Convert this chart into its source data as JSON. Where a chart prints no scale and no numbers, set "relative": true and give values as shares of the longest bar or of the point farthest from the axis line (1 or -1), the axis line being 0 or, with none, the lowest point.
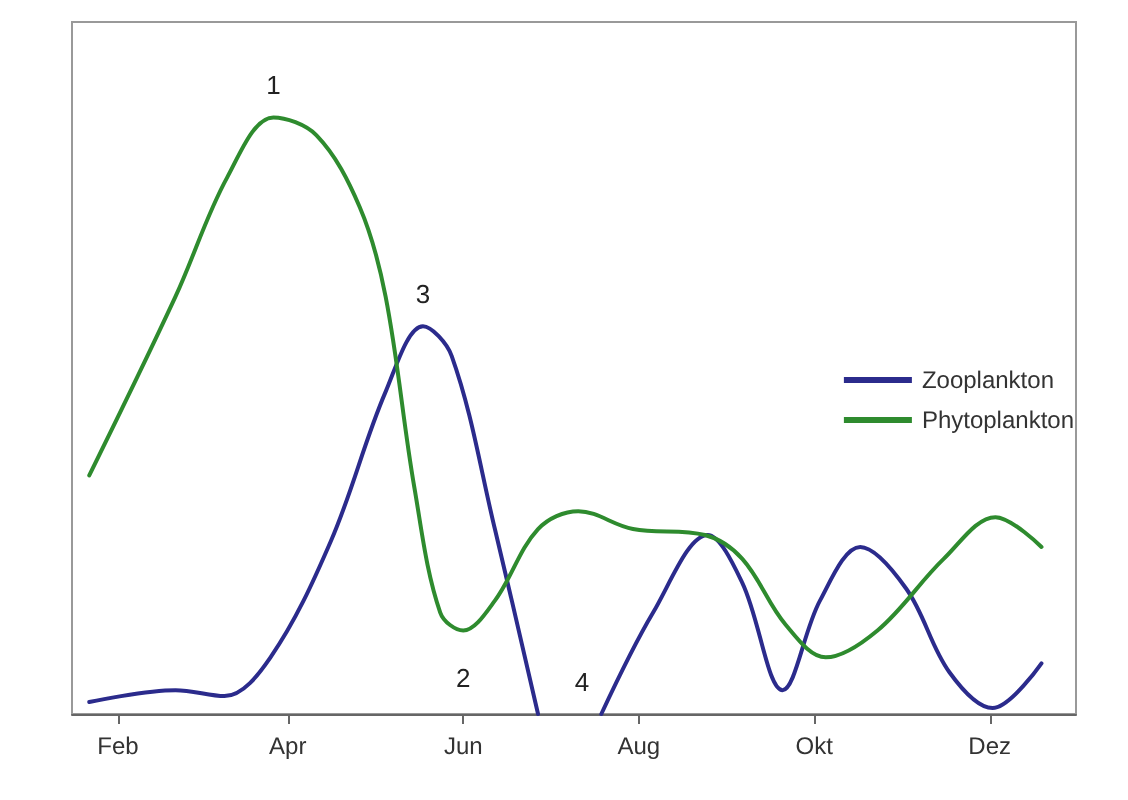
{
  "chart_data": {
    "type": "line",
    "relative": true,
    "xlim": [
      "--01-16",
      "--12-31"
    ],
    "xticks": [
      {
        "value": "--02-01",
        "label": "Feb"
      },
      {
        "value": "--04-01",
        "label": "Apr"
      },
      {
        "value": "--06-01",
        "label": "Jun"
      },
      {
        "value": "--08-01",
        "label": "Aug"
      },
      {
        "value": "--10-01",
        "label": "Okt"
      },
      {
        "value": "--12-01",
        "label": "Dez"
      }
    ],
    "series": [
      {
        "name": "Zooplankton",
        "color": "#2b2b8c",
        "x": [
          "--01-22",
          "--02-21",
          "--03-10",
          "--03-26",
          "--04-16",
          "--05-05",
          "--05-18",
          "--05-28",
          "--06-12",
          "--06-27",
          "--07-10",
          "--07-19",
          "--08-06",
          "--08-25",
          "--09-06",
          "--09-20",
          "--10-03",
          "--10-17",
          "--11-02",
          "--11-17",
          "--12-02",
          "--12-19"
        ],
        "values": [
          0.02,
          0.04,
          0.03,
          0.095,
          0.29,
          0.54,
          0.65,
          0.6,
          0.31,
          0,
          null,
          0,
          0.17,
          0.3,
          0.22,
          0.04,
          0.19,
          0.28,
          0.21,
          0.07,
          0.01,
          0.085
        ]
      },
      {
        "name": "Phytoplankton",
        "color": "#2e8b2e",
        "x": [
          "--01-22",
          "--02-21",
          "--03-11",
          "--03-27",
          "--04-11",
          "--04-26",
          "--05-05",
          "--05-15",
          "--05-24",
          "--06-01",
          "--06-12",
          "--06-27",
          "--07-11",
          "--07-30",
          "--08-24",
          "--09-06",
          "--09-21",
          "--10-05",
          "--10-23",
          "--11-15",
          "--12-03",
          "--12-19"
        ],
        "values": [
          0.4,
          0.7,
          0.9,
          1,
          0.97,
          0.85,
          0.7,
          0.38,
          0.17,
          0.14,
          0.19,
          0.31,
          0.34,
          0.31,
          0.3,
          0.26,
          0.15,
          0.095,
          0.14,
          0.26,
          0.33,
          0.28
        ]
      }
    ],
    "annotations": [
      {
        "text": "1",
        "x": "--03-27",
        "y": 1
      },
      {
        "text": "3",
        "x": "--05-18",
        "y": 0.65
      },
      {
        "text": "2",
        "x": "--06-01",
        "y": 0.14
      },
      {
        "text": "4",
        "x": "--07-19",
        "y": 0
      }
    ],
    "legend": "right",
    "grid": false,
    "marker": "none",
    "line_style": "solid"
  }
}
